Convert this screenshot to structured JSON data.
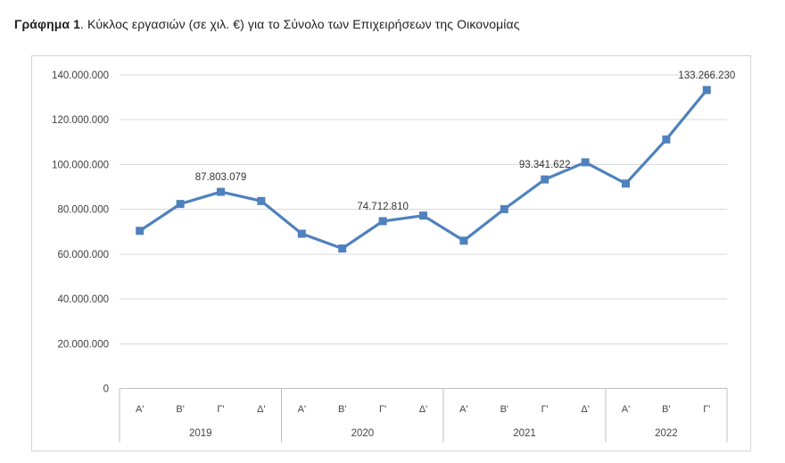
{
  "title": {
    "prefix": "Γράφημα 1",
    "rest": ". Κύκλος εργασιών (σε χιλ. €) για το Σύνολο των Επιχειρήσεων της Οικονομίας"
  },
  "chart_data": {
    "type": "line",
    "title": "Γράφημα 1. Κύκλος εργασιών (σε χιλ. €) για το Σύνολο των Επιχειρήσεων της Οικονομίας",
    "xlabel": "",
    "ylabel": "",
    "ylim": [
      0,
      140000000
    ],
    "grid": true,
    "legend": false,
    "series_color": "#4F81BD",
    "gridline_color": "#d9d9d9",
    "axis_table_line_color": "#bfbfbf",
    "marker_shape": "square",
    "y_ticks": [
      {
        "value": 0,
        "label": "0"
      },
      {
        "value": 20000000,
        "label": "20.000.000"
      },
      {
        "value": 40000000,
        "label": "40.000.000"
      },
      {
        "value": 60000000,
        "label": "60.000.000"
      },
      {
        "value": 80000000,
        "label": "80.000.000"
      },
      {
        "value": 100000000,
        "label": "100.000.000"
      },
      {
        "value": 120000000,
        "label": "120.000.000"
      },
      {
        "value": 140000000,
        "label": "140.000.000"
      }
    ],
    "x_groups": [
      {
        "year": "2019",
        "quarters": [
          "Α'",
          "Β'",
          "Γ'",
          "Δ'"
        ]
      },
      {
        "year": "2020",
        "quarters": [
          "Α'",
          "Β'",
          "Γ'",
          "Δ'"
        ]
      },
      {
        "year": "2021",
        "quarters": [
          "Α'",
          "Β'",
          "Γ'",
          "Δ'"
        ]
      },
      {
        "year": "2022",
        "quarters": [
          "Α'",
          "Β'",
          "Γ'"
        ]
      }
    ],
    "values": [
      70400000,
      82400000,
      87803079,
      83700000,
      69100000,
      62500000,
      74712810,
      77200000,
      66000000,
      80100000,
      93341622,
      101000000,
      91500000,
      111200000,
      133266230
    ],
    "point_labels": {
      "2": "87.803.079",
      "6": "74.712.810",
      "10": "93.341.622",
      "14": "133.266.230"
    }
  }
}
